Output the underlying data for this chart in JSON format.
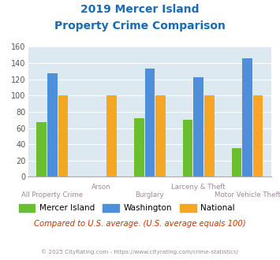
{
  "title_line1": "2019 Mercer Island",
  "title_line2": "Property Crime Comparison",
  "categories": [
    "All Property Crime",
    "Arson",
    "Burglary",
    "Larceny & Theft",
    "Motor Vehicle Theft"
  ],
  "series": {
    "Mercer Island": [
      67,
      0,
      72,
      70,
      35
    ],
    "Washington": [
      127,
      0,
      133,
      123,
      146
    ],
    "National": [
      100,
      100,
      100,
      100,
      100
    ]
  },
  "colors": {
    "Mercer Island": "#6abf2e",
    "Washington": "#4d8fdb",
    "National": "#f5a623"
  },
  "ylim": [
    0,
    160
  ],
  "yticks": [
    0,
    20,
    40,
    60,
    80,
    100,
    120,
    140,
    160
  ],
  "plot_bg_color": "#dce9f0",
  "title_color": "#1a6bb5",
  "axis_label_color": "#a08898",
  "subtitle_color": "#cc3300",
  "footer_color": "#a08898",
  "subtitle_text": "Compared to U.S. average. (U.S. average equals 100)",
  "footer_text": "© 2025 CityRating.com - https://www.cityrating.com/crime-statistics/",
  "bar_width": 0.22
}
